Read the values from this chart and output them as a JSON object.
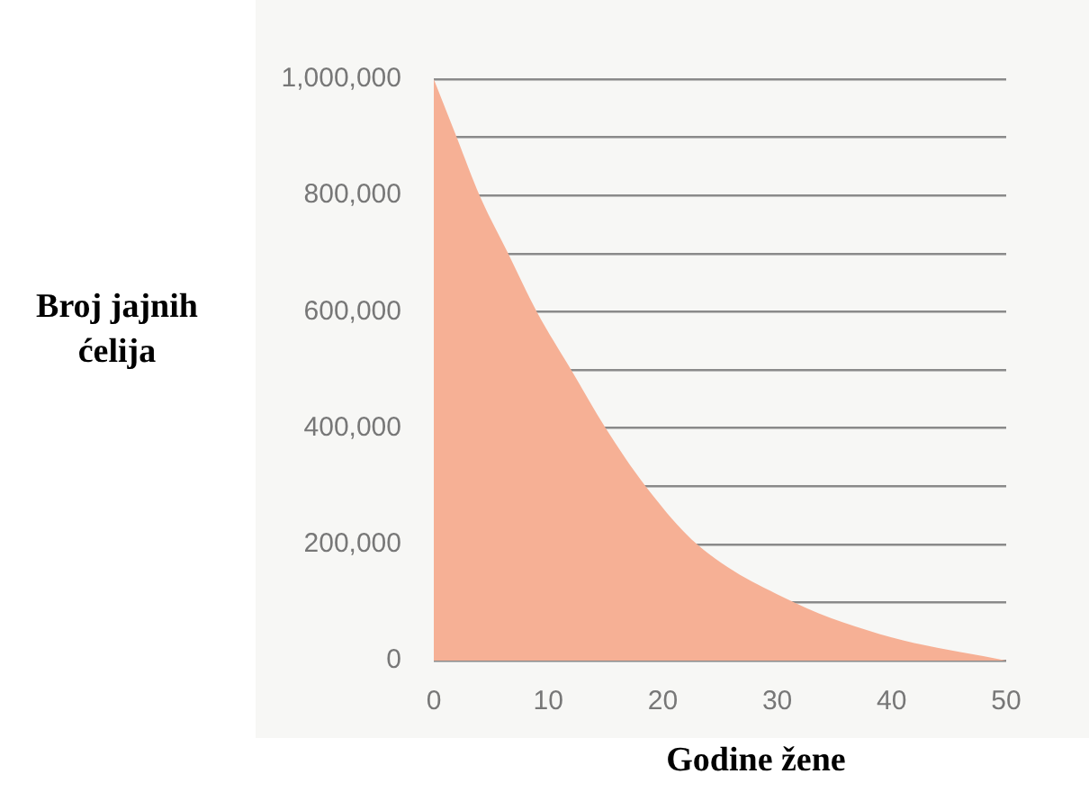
{
  "chart_data": {
    "type": "area",
    "xlabel": "Godine žene",
    "ylabel": "Broj jajnih\nćelija",
    "x": [
      0,
      2,
      4,
      6.5,
      9,
      12,
      15,
      18.5,
      23,
      31.5,
      40,
      50
    ],
    "series": [
      {
        "color": "#f6b095",
        "values": [
          1000000,
          900000,
          800000,
          700000,
          600000,
          500000,
          400000,
          300000,
          200000,
          100000,
          40000,
          0
        ]
      }
    ],
    "xlim": [
      0,
      50
    ],
    "xticks": [
      0,
      10,
      20,
      30,
      40,
      50
    ],
    "ylim": [
      0,
      1000000
    ],
    "yticks": [
      {
        "value": 0,
        "label": "0"
      },
      {
        "value": 100000,
        "label": null
      },
      {
        "value": 200000,
        "label": "200,000"
      },
      {
        "value": 300000,
        "label": null
      },
      {
        "value": 400000,
        "label": "400,000"
      },
      {
        "value": 500000,
        "label": null
      },
      {
        "value": 600000,
        "label": "600,000"
      },
      {
        "value": 700000,
        "label": null
      },
      {
        "value": 800000,
        "label": "800,000"
      },
      {
        "value": 900000,
        "label": null
      },
      {
        "value": 1000000,
        "label": "1,000,000"
      }
    ],
    "grid": "y",
    "legend": false
  }
}
